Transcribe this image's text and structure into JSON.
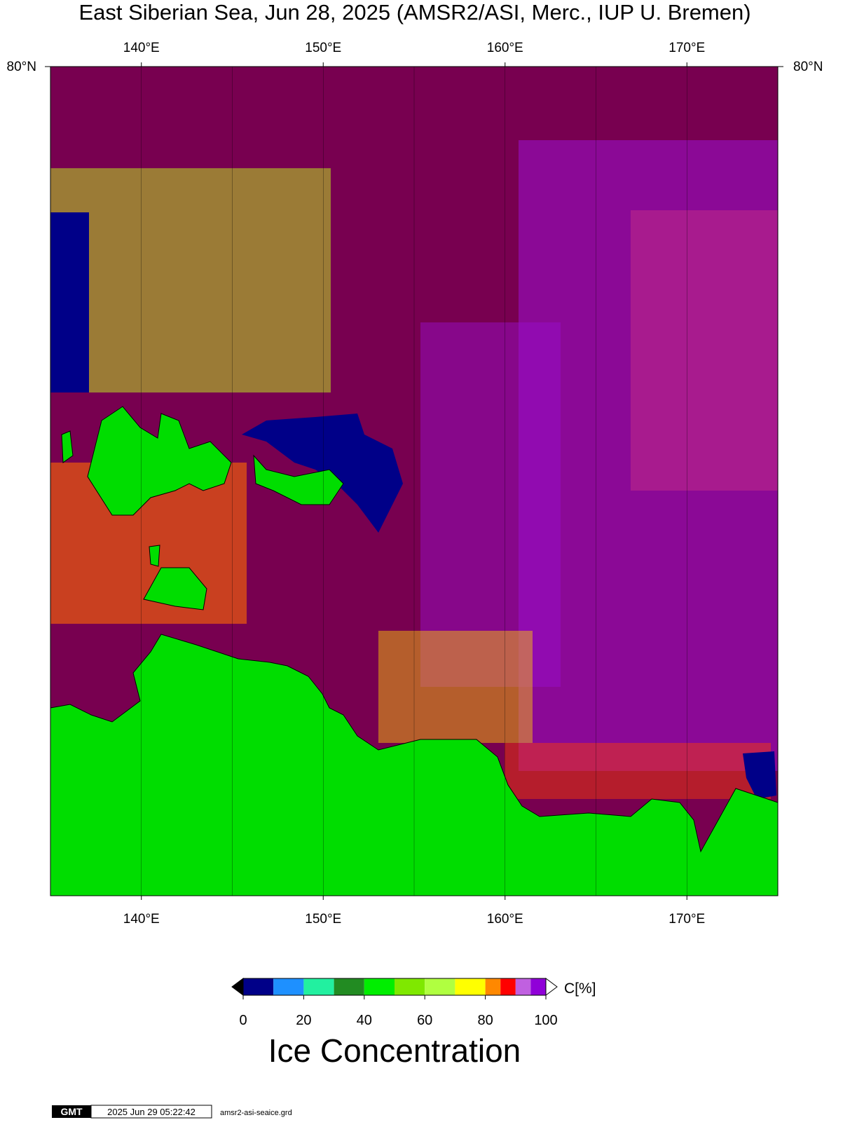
{
  "title": "East Siberian Sea, Jun 28, 2025 (AMSR2/ASI, Merc., IUP U. Bremen)",
  "map": {
    "xlim": [
      135,
      175
    ],
    "lon_ticks": [
      {
        "value": 140,
        "label": "140°E"
      },
      {
        "value": 150,
        "label": "150°E"
      },
      {
        "value": 160,
        "label": "160°E"
      },
      {
        "value": 170,
        "label": "170°E"
      }
    ],
    "lon_grid": [
      140,
      145,
      150,
      155,
      160,
      165,
      170
    ],
    "lat_ticks": [
      {
        "value": 80,
        "label": "80°N"
      }
    ],
    "ocean_color": "#780050",
    "land_color": "#00dd00"
  },
  "colorbar": {
    "bounds": [
      0,
      10,
      20,
      30,
      40,
      50,
      60,
      70,
      80,
      85,
      90,
      95,
      100
    ],
    "colors": [
      "#000088",
      "#1e90ff",
      "#22f0a0",
      "#228b22",
      "#00ee00",
      "#7fe800",
      "#b0ff40",
      "#ffff00",
      "#ff8800",
      "#ff0000",
      "#c060e0",
      "#9000d8"
    ],
    "below_color": "#000000",
    "above_color": "#ffffff",
    "ticks": [
      0,
      20,
      40,
      60,
      80,
      100
    ],
    "unit": "C[%]",
    "title": "Ice Concentration"
  },
  "footer": {
    "logo": "GMT",
    "timestamp": "2025 Jun 29 05:22:42",
    "file": "amsr2-asi-seaice.grd"
  }
}
